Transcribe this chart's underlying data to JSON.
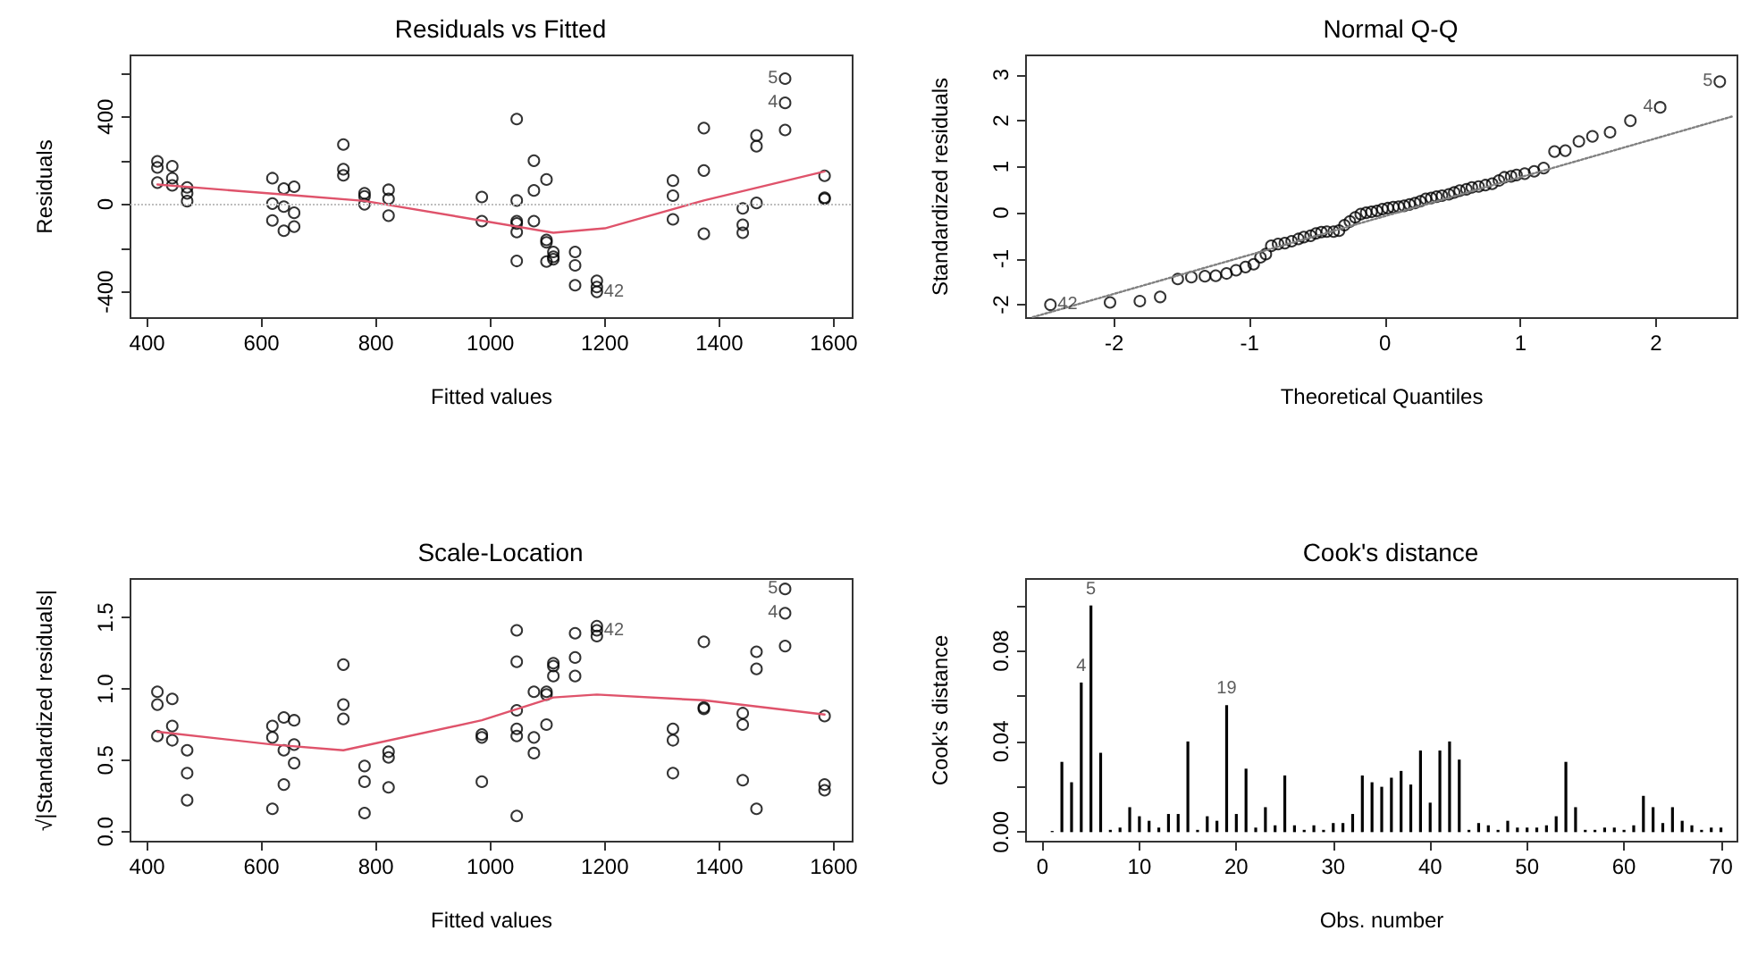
{
  "chart_data": [
    {
      "type": "scatter",
      "title": "Residuals vs Fitted",
      "xlabel": "Fitted values",
      "ylabel": "Residuals",
      "xlim": [
        371,
        1633
      ],
      "ylim": [
        -520,
        680
      ],
      "xticks": [
        400,
        600,
        800,
        1000,
        1200,
        1400,
        1600
      ],
      "yticks": [
        {
          "value": -400,
          "label": "-400"
        },
        {
          "value": -200,
          "label": null
        },
        0,
        {
          "value": 200,
          "label": null
        },
        400,
        {
          "value": 600,
          "label": null
        }
      ],
      "series": [
        {
          "type": "scatter",
          "marker": "circle",
          "color": "#000000",
          "x": [
            418,
            418,
            418,
            444,
            444,
            444,
            470,
            470,
            470,
            619,
            619,
            619,
            639,
            639,
            639,
            657,
            657,
            657,
            743,
            743,
            743,
            780,
            780,
            780,
            822,
            822,
            822,
            985,
            985,
            1046,
            1046,
            1046,
            1046,
            1046,
            1046,
            1076,
            1076,
            1076,
            1098,
            1098,
            1098,
            1098,
            1110,
            1110,
            1110,
            1148,
            1148,
            1148,
            1186,
            1186,
            1186,
            1319,
            1319,
            1319,
            1373,
            1373,
            1373,
            1441,
            1441,
            1441,
            1465,
            1465,
            1465,
            1515,
            1515,
            1515,
            1584,
            1584,
            1584
          ],
          "values": [
            196,
            168,
            99,
            174,
            119,
            86,
            77,
            50,
            14,
            119,
            3,
            -74,
            72,
            -11,
            -121,
            80,
            -39,
            -102,
            273,
            160,
            132,
            50,
            36,
            0,
            66,
            25,
            -52,
            33,
            -77,
            389,
            17,
            -77,
            -88,
            -127,
            -259,
            199,
            63,
            -77,
            113,
            -163,
            -174,
            -262,
            -218,
            -240,
            -251,
            -218,
            -279,
            -370,
            -350,
            -378,
            -400,
            108,
            39,
            -69,
            348,
            154,
            -135,
            -19,
            -94,
            -130,
            314,
            265,
            6,
            574,
            463,
            339,
            130,
            30,
            25
          ]
        },
        {
          "type": "line",
          "marker": "none",
          "line_style": "solid",
          "color": "#df536b",
          "x": [
            418,
            660,
            780,
            985,
            1110,
            1200,
            1373,
            1584
          ],
          "values": [
            90,
            40,
            15,
            -75,
            -130,
            -110,
            17,
            150
          ]
        }
      ],
      "ref_lines": [
        {
          "axis": "y",
          "value": 0,
          "color": "#bebebe",
          "line_style": "dotted"
        }
      ],
      "annotations": [
        {
          "text": "5",
          "x": 1515,
          "y": 574
        },
        {
          "text": "4",
          "x": 1515,
          "y": 463
        },
        {
          "text": "42",
          "x": 1186,
          "y": -400
        }
      ]
    },
    {
      "type": "scatter",
      "title": "Normal Q-Q",
      "xlabel": "Theoretical Quantiles",
      "ylabel": "Standardized residuals",
      "xlim": [
        -2.65,
        2.6
      ],
      "ylim": [
        -2.29,
        3.42
      ],
      "xticks": [
        -2,
        -1,
        0,
        1,
        2
      ],
      "yticks": [
        -2,
        -1,
        0,
        1,
        2,
        3
      ],
      "series": [
        {
          "type": "scatter",
          "marker": "circle",
          "color": "#000000",
          "x": [
            -2.47,
            -2.03,
            -1.81,
            -1.66,
            -1.53,
            -1.43,
            -1.33,
            -1.25,
            -1.17,
            -1.1,
            -1.03,
            -0.97,
            -0.92,
            -0.88,
            -0.84,
            -0.79,
            -0.74,
            -0.69,
            -0.64,
            -0.6,
            -0.55,
            -0.51,
            -0.47,
            -0.43,
            -0.38,
            -0.34,
            -0.3,
            -0.26,
            -0.22,
            -0.18,
            -0.14,
            -0.1,
            -0.06,
            -0.02,
            0.02,
            0.06,
            0.1,
            0.14,
            0.18,
            0.22,
            0.26,
            0.3,
            0.34,
            0.38,
            0.42,
            0.47,
            0.51,
            0.55,
            0.6,
            0.64,
            0.69,
            0.74,
            0.79,
            0.84,
            0.88,
            0.93,
            0.97,
            1.03,
            1.1,
            1.17,
            1.25,
            1.33,
            1.43,
            1.53,
            1.66,
            1.81,
            2.03,
            2.47
          ],
          "values": [
            -2.0,
            -1.95,
            -1.92,
            -1.83,
            -1.44,
            -1.4,
            -1.38,
            -1.37,
            -1.32,
            -1.25,
            -1.18,
            -1.12,
            -0.97,
            -0.9,
            -0.72,
            -0.68,
            -0.66,
            -0.62,
            -0.57,
            -0.53,
            -0.5,
            -0.45,
            -0.42,
            -0.41,
            -0.41,
            -0.39,
            -0.27,
            -0.19,
            -0.1,
            -0.03,
            0.0,
            0.02,
            0.04,
            0.08,
            0.1,
            0.12,
            0.13,
            0.15,
            0.18,
            0.21,
            0.25,
            0.3,
            0.32,
            0.35,
            0.37,
            0.4,
            0.44,
            0.48,
            0.51,
            0.55,
            0.57,
            0.6,
            0.63,
            0.7,
            0.77,
            0.79,
            0.82,
            0.85,
            0.9,
            0.97,
            1.33,
            1.35,
            1.55,
            1.66,
            1.75,
            2.0,
            2.29,
            2.85
          ]
        },
        {
          "type": "line",
          "marker": "none",
          "line_style": "dotted",
          "color": "#808080",
          "x": [
            -2.6,
            2.57
          ],
          "values": [
            -2.27,
            2.1
          ]
        }
      ],
      "annotations": [
        {
          "text": "42",
          "x": -2.47,
          "y": -2.0
        },
        {
          "text": "4",
          "x": 2.03,
          "y": 2.29
        },
        {
          "text": "5",
          "x": 2.47,
          "y": 2.85
        }
      ]
    },
    {
      "type": "scatter",
      "title": "Scale-Location",
      "xlabel": "Fitted values",
      "ylabel": "√|Standardized residuals|",
      "xlim": [
        371,
        1633
      ],
      "ylim": [
        -0.07,
        1.77
      ],
      "xticks": [
        400,
        600,
        800,
        1000,
        1200,
        1400,
        1600
      ],
      "yticks": [
        {
          "value": 0,
          "label": "0.0"
        },
        {
          "value": 0.5,
          "label": "0.5"
        },
        {
          "value": 1,
          "label": "1.0"
        },
        {
          "value": 1.5,
          "label": "1.5"
        }
      ],
      "series": [
        {
          "type": "scatter",
          "marker": "circle",
          "color": "#000000",
          "x": [
            418,
            418,
            418,
            444,
            444,
            444,
            470,
            470,
            470,
            619,
            619,
            619,
            639,
            639,
            639,
            657,
            657,
            657,
            743,
            743,
            743,
            780,
            780,
            780,
            822,
            822,
            822,
            985,
            985,
            985,
            1046,
            1046,
            1046,
            1046,
            1046,
            1046,
            1076,
            1076,
            1076,
            1098,
            1098,
            1098,
            1110,
            1110,
            1110,
            1148,
            1148,
            1148,
            1186,
            1186,
            1186,
            1319,
            1319,
            1319,
            1373,
            1373,
            1373,
            1441,
            1441,
            1441,
            1465,
            1465,
            1465,
            1515,
            1515,
            1515,
            1584,
            1584,
            1584
          ],
          "values": [
            0.98,
            0.89,
            0.67,
            0.93,
            0.74,
            0.64,
            0.57,
            0.41,
            0.22,
            0.74,
            0.66,
            0.16,
            0.8,
            0.57,
            0.33,
            0.78,
            0.61,
            0.48,
            1.17,
            0.89,
            0.79,
            0.46,
            0.35,
            0.13,
            0.56,
            0.52,
            0.31,
            0.68,
            0.66,
            0.35,
            1.41,
            1.19,
            0.85,
            0.72,
            0.67,
            0.11,
            0.98,
            0.66,
            0.55,
            0.98,
            0.96,
            0.75,
            1.18,
            1.16,
            1.09,
            1.39,
            1.22,
            1.09,
            1.44,
            1.41,
            1.37,
            0.72,
            0.64,
            0.41,
            1.33,
            0.87,
            0.86,
            0.83,
            0.75,
            0.36,
            1.26,
            1.14,
            0.16,
            1.7,
            1.53,
            1.3,
            0.81,
            0.33,
            0.29
          ]
        },
        {
          "type": "line",
          "marker": "none",
          "line_style": "solid",
          "color": "#df536b",
          "x": [
            418,
            620,
            743,
            985,
            1110,
            1186,
            1373,
            1584
          ],
          "values": [
            0.7,
            0.61,
            0.57,
            0.78,
            0.94,
            0.96,
            0.92,
            0.82
          ]
        }
      ],
      "annotations": [
        {
          "text": "5",
          "x": 1515,
          "y": 1.7
        },
        {
          "text": "4",
          "x": 1515,
          "y": 1.53
        },
        {
          "text": "42",
          "x": 1186,
          "y": 1.41
        }
      ]
    },
    {
      "type": "bar",
      "title": "Cook's distance",
      "xlabel": "Obs. number",
      "ylabel": "Cook's distance",
      "xlim": [
        -1.7,
        71.7
      ],
      "ylim": [
        -0.0042,
        0.1117
      ],
      "xticks": [
        0,
        10,
        20,
        30,
        40,
        50,
        60,
        70
      ],
      "yticks": [
        {
          "value": 0,
          "label": "0.00"
        },
        {
          "value": 0.02,
          "label": null
        },
        {
          "value": 0.04,
          "label": "0.04"
        },
        {
          "value": 0.06,
          "label": null
        },
        {
          "value": 0.08,
          "label": "0.08"
        },
        {
          "value": 0.1,
          "label": null
        }
      ],
      "series": [
        {
          "color": "#000000",
          "x": [
            1,
            2,
            3,
            4,
            5,
            6,
            7,
            8,
            9,
            10,
            11,
            12,
            13,
            14,
            15,
            16,
            17,
            18,
            19,
            20,
            21,
            22,
            23,
            24,
            25,
            26,
            27,
            28,
            29,
            30,
            31,
            32,
            33,
            34,
            35,
            36,
            37,
            38,
            39,
            40,
            41,
            42,
            43,
            44,
            45,
            46,
            47,
            48,
            49,
            50,
            51,
            52,
            53,
            54,
            55,
            56,
            57,
            58,
            59,
            60,
            61,
            62,
            63,
            64,
            65,
            66,
            67,
            68,
            69,
            70
          ],
          "values": [
            0.0005,
            0.031,
            0.022,
            0.066,
            0.1,
            0.035,
            0.001,
            0.002,
            0.011,
            0.007,
            0.005,
            0.002,
            0.008,
            0.008,
            0.04,
            0.001,
            0.007,
            0.005,
            0.056,
            0.008,
            0.028,
            0.002,
            0.011,
            0.003,
            0.025,
            0.003,
            0.001,
            0.003,
            0.001,
            0.004,
            0.004,
            0.008,
            0.025,
            0.022,
            0.02,
            0.024,
            0.027,
            0.021,
            0.036,
            0.013,
            0.036,
            0.04,
            0.032,
            0.001,
            0.004,
            0.003,
            0.001,
            0.005,
            0.002,
            0.002,
            0.002,
            0.003,
            0.007,
            0.031,
            0.011,
            0.001,
            0.001,
            0.002,
            0.002,
            0.001,
            0.003,
            0.016,
            0.011,
            0.004,
            0.011,
            0.005,
            0.003,
            0.001,
            0.002,
            0.002
          ]
        }
      ],
      "annotations": [
        {
          "text": "4",
          "x": 4,
          "y": 0.066
        },
        {
          "text": "5",
          "x": 5,
          "y": 0.1
        },
        {
          "text": "19",
          "x": 19,
          "y": 0.056
        }
      ]
    }
  ]
}
